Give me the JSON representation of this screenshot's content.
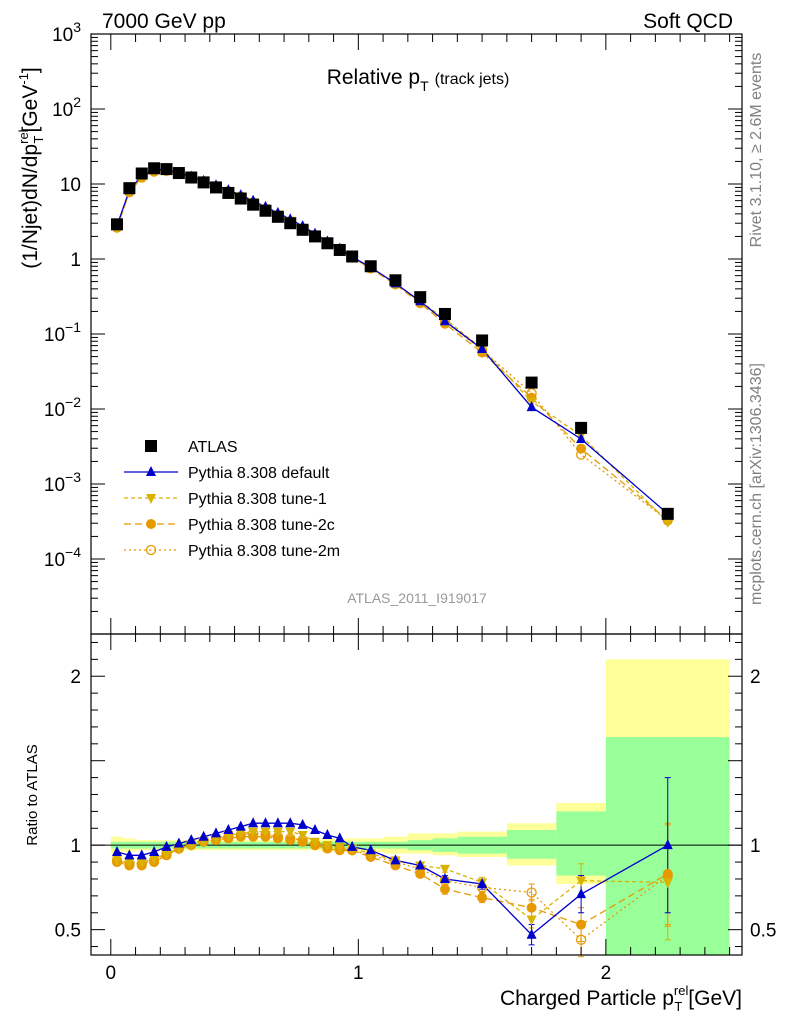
{
  "header": {
    "left": "7000 GeV pp",
    "right": "Soft QCD"
  },
  "side_labels": {
    "rivet": "Rivet 3.1.10, ≥ 2.6M events",
    "mcplots": "mcplots.cern.ch [arXiv:1306.3436]"
  },
  "chart_data": {
    "type": "line",
    "title_main": "Relative p",
    "title_sub": "T",
    "title_extra": "(track jets)",
    "analysis_id": "ATLAS_2011_I919017",
    "xlabel": "Charged Particle p",
    "xlabel_sup": "rel",
    "xlabel_sub": "T",
    "xlabel_unit": "[GeV]",
    "ylabel": "(1/Njet)dN/dp",
    "ylabel_sup": "rel",
    "ylabel_sub": "T",
    "ylabel_unit": "[GeV",
    "ylabel_unit_sup": "-1",
    "ylabel_unit_close": "]",
    "ratio_ylabel": "Ratio to ATLAS",
    "xlim": [
      -0.08,
      2.55
    ],
    "ylim_log": [
      1e-05,
      1000
    ],
    "ratio_ylim": [
      0.35,
      2.25
    ],
    "x_ticks": [
      {
        "v": 0,
        "label": "0"
      },
      {
        "v": 1,
        "label": "1"
      },
      {
        "v": 2,
        "label": "2"
      }
    ],
    "y_ticks": [
      {
        "v": 1000,
        "base": "10",
        "exp": "3"
      },
      {
        "v": 100,
        "base": "10",
        "exp": "2"
      },
      {
        "v": 10,
        "base": "10",
        "exp": ""
      },
      {
        "v": 1,
        "base": "1",
        "exp": ""
      },
      {
        "v": 0.1,
        "base": "10",
        "exp": "−1"
      },
      {
        "v": 0.01,
        "base": "10",
        "exp": "−2"
      },
      {
        "v": 0.001,
        "base": "10",
        "exp": "−3"
      },
      {
        "v": 0.0001,
        "base": "10",
        "exp": "−4"
      }
    ],
    "ratio_ticks": [
      {
        "v": 0.5,
        "label": "0.5"
      },
      {
        "v": 1,
        "label": "1"
      },
      {
        "v": 2,
        "label": "2"
      }
    ],
    "x": [
      0.025,
      0.075,
      0.125,
      0.175,
      0.225,
      0.275,
      0.325,
      0.375,
      0.425,
      0.475,
      0.525,
      0.575,
      0.625,
      0.675,
      0.725,
      0.775,
      0.825,
      0.875,
      0.925,
      0.975,
      1.05,
      1.15,
      1.25,
      1.35,
      1.5,
      1.7,
      1.9,
      2.25
    ],
    "bins": [
      [
        0,
        0.05
      ],
      [
        0.05,
        0.1
      ],
      [
        0.1,
        0.15
      ],
      [
        0.15,
        0.2
      ],
      [
        0.2,
        0.25
      ],
      [
        0.25,
        0.3
      ],
      [
        0.3,
        0.35
      ],
      [
        0.35,
        0.4
      ],
      [
        0.4,
        0.45
      ],
      [
        0.45,
        0.5
      ],
      [
        0.5,
        0.55
      ],
      [
        0.55,
        0.6
      ],
      [
        0.6,
        0.65
      ],
      [
        0.65,
        0.7
      ],
      [
        0.7,
        0.75
      ],
      [
        0.75,
        0.8
      ],
      [
        0.8,
        0.85
      ],
      [
        0.85,
        0.9
      ],
      [
        0.9,
        0.95
      ],
      [
        0.95,
        1.0
      ],
      [
        1.0,
        1.1
      ],
      [
        1.1,
        1.2
      ],
      [
        1.2,
        1.3
      ],
      [
        1.3,
        1.4
      ],
      [
        1.4,
        1.6
      ],
      [
        1.6,
        1.8
      ],
      [
        1.8,
        2.0
      ],
      [
        2.0,
        2.5
      ]
    ],
    "atlas": [
      2.9,
      8.8,
      13.8,
      16.2,
      15.8,
      14.0,
      12.2,
      10.5,
      9.0,
      7.6,
      6.4,
      5.3,
      4.4,
      3.65,
      3.0,
      2.45,
      2.0,
      1.62,
      1.32,
      1.08,
      0.8,
      0.52,
      0.31,
      0.185,
      0.082,
      0.0225,
      0.0056,
      0.0004
    ],
    "stat_band": [
      [
        0.98,
        1.02
      ],
      [
        0.98,
        1.02
      ],
      [
        0.98,
        1.02
      ],
      [
        0.98,
        1.02
      ],
      [
        0.98,
        1.02
      ],
      [
        0.98,
        1.02
      ],
      [
        0.98,
        1.02
      ],
      [
        0.98,
        1.02
      ],
      [
        0.98,
        1.02
      ],
      [
        0.98,
        1.02
      ],
      [
        0.98,
        1.02
      ],
      [
        0.98,
        1.02
      ],
      [
        0.98,
        1.02
      ],
      [
        0.98,
        1.02
      ],
      [
        0.98,
        1.02
      ],
      [
        0.98,
        1.02
      ],
      [
        0.98,
        1.02
      ],
      [
        0.98,
        1.02
      ],
      [
        0.98,
        1.02
      ],
      [
        0.98,
        1.02
      ],
      [
        0.98,
        1.02
      ],
      [
        0.98,
        1.02
      ],
      [
        0.97,
        1.03
      ],
      [
        0.96,
        1.04
      ],
      [
        0.95,
        1.05
      ],
      [
        0.92,
        1.09
      ],
      [
        0.82,
        1.2
      ],
      [
        0.35,
        1.64
      ]
    ],
    "syst_band": [
      [
        0.95,
        1.05
      ],
      [
        0.96,
        1.04
      ],
      [
        0.97,
        1.03
      ],
      [
        0.97,
        1.03
      ],
      [
        0.97,
        1.03
      ],
      [
        0.97,
        1.03
      ],
      [
        0.97,
        1.03
      ],
      [
        0.97,
        1.03
      ],
      [
        0.97,
        1.03
      ],
      [
        0.97,
        1.03
      ],
      [
        0.97,
        1.03
      ],
      [
        0.97,
        1.03
      ],
      [
        0.97,
        1.03
      ],
      [
        0.97,
        1.03
      ],
      [
        0.97,
        1.03
      ],
      [
        0.97,
        1.03
      ],
      [
        0.97,
        1.03
      ],
      [
        0.96,
        1.04
      ],
      [
        0.96,
        1.04
      ],
      [
        0.96,
        1.04
      ],
      [
        0.96,
        1.04
      ],
      [
        0.95,
        1.05
      ],
      [
        0.95,
        1.07
      ],
      [
        0.94,
        1.07
      ],
      [
        0.93,
        1.08
      ],
      [
        0.88,
        1.13
      ],
      [
        0.77,
        1.25
      ],
      [
        0.35,
        2.1
      ]
    ],
    "series": [
      {
        "name": "Pythia 8.308 default",
        "color": "#0000cc",
        "marker": "triangle-up",
        "dash": "",
        "ratio": [
          0.96,
          0.94,
          0.94,
          0.96,
          0.99,
          1.01,
          1.03,
          1.05,
          1.07,
          1.09,
          1.11,
          1.13,
          1.13,
          1.13,
          1.13,
          1.12,
          1.09,
          1.06,
          1.04,
          0.99,
          0.97,
          0.91,
          0.88,
          0.8,
          0.77,
          0.47,
          0.71,
          1.0
        ],
        "ratio_err": [
          0.01,
          0.01,
          0.01,
          0.01,
          0.01,
          0.01,
          0.01,
          0.01,
          0.01,
          0.01,
          0.01,
          0.01,
          0.01,
          0.01,
          0.01,
          0.01,
          0.01,
          0.01,
          0.01,
          0.01,
          0.01,
          0.01,
          0.01,
          0.02,
          0.03,
          0.06,
          0.11,
          0.4
        ]
      },
      {
        "name": "Pythia 8.308 tune-1",
        "color": "#d9b300",
        "marker": "triangle-down",
        "dash": "4,3",
        "ratio": [
          0.91,
          0.9,
          0.9,
          0.92,
          0.95,
          0.98,
          1.0,
          1.02,
          1.04,
          1.06,
          1.07,
          1.08,
          1.08,
          1.08,
          1.08,
          1.06,
          1.02,
          1.0,
          0.99,
          0.98,
          0.95,
          0.91,
          0.88,
          0.86,
          0.78,
          0.56,
          0.79,
          0.78
        ],
        "ratio_err": [
          0.01,
          0.01,
          0.01,
          0.01,
          0.01,
          0.01,
          0.01,
          0.01,
          0.01,
          0.01,
          0.01,
          0.01,
          0.01,
          0.01,
          0.01,
          0.01,
          0.01,
          0.01,
          0.01,
          0.01,
          0.01,
          0.01,
          0.02,
          0.02,
          0.03,
          0.05,
          0.1,
          0.34
        ]
      },
      {
        "name": "Pythia 8.308 tune-2c",
        "color": "#e69a00",
        "marker": "circle",
        "dash": "7,4",
        "ratio": [
          0.9,
          0.88,
          0.88,
          0.9,
          0.94,
          0.98,
          1.0,
          1.02,
          1.03,
          1.04,
          1.05,
          1.05,
          1.05,
          1.04,
          1.03,
          1.02,
          1.0,
          0.98,
          0.97,
          0.97,
          0.93,
          0.88,
          0.83,
          0.74,
          0.69,
          0.63,
          0.53,
          0.83
        ],
        "ratio_err": [
          0.01,
          0.01,
          0.01,
          0.01,
          0.01,
          0.01,
          0.01,
          0.01,
          0.01,
          0.01,
          0.01,
          0.01,
          0.01,
          0.01,
          0.01,
          0.01,
          0.01,
          0.01,
          0.01,
          0.01,
          0.01,
          0.01,
          0.02,
          0.03,
          0.03,
          0.05,
          0.1,
          0.3
        ]
      },
      {
        "name": "Pythia 8.308 tune-2m",
        "color": "#e69a00",
        "marker": "circle-open",
        "dash": "2,3",
        "ratio": [
          0.91,
          0.89,
          0.89,
          0.91,
          0.95,
          0.98,
          1.01,
          1.03,
          1.04,
          1.05,
          1.06,
          1.07,
          1.06,
          1.05,
          1.04,
          1.03,
          1.01,
          0.99,
          0.98,
          0.97,
          0.94,
          0.9,
          0.86,
          0.79,
          0.75,
          0.72,
          0.44,
          0.82
        ],
        "ratio_err": [
          0.01,
          0.01,
          0.01,
          0.01,
          0.01,
          0.01,
          0.01,
          0.01,
          0.01,
          0.01,
          0.01,
          0.01,
          0.01,
          0.01,
          0.01,
          0.01,
          0.01,
          0.01,
          0.01,
          0.01,
          0.01,
          0.01,
          0.02,
          0.02,
          0.03,
          0.05,
          0.1,
          0.3
        ]
      }
    ],
    "legend": [
      {
        "name": "ATLAS",
        "marker": "square",
        "color": "#000000",
        "dash": ""
      },
      {
        "name": "Pythia 8.308 default",
        "marker": "triangle-up",
        "color": "#0000cc",
        "dash": ""
      },
      {
        "name": "Pythia 8.308 tune-1",
        "marker": "triangle-down",
        "color": "#d9b300",
        "dash": "4,3"
      },
      {
        "name": "Pythia 8.308 tune-2c",
        "marker": "circle",
        "color": "#e69a00",
        "dash": "7,4"
      },
      {
        "name": "Pythia 8.308 tune-2m",
        "marker": "circle-open",
        "color": "#e69a00",
        "dash": "2,3"
      }
    ],
    "legend_placement": "lower-left",
    "colors": {
      "stat_band": "#99ff99",
      "syst_band": "#ffff99",
      "atlas": "#000000"
    }
  }
}
